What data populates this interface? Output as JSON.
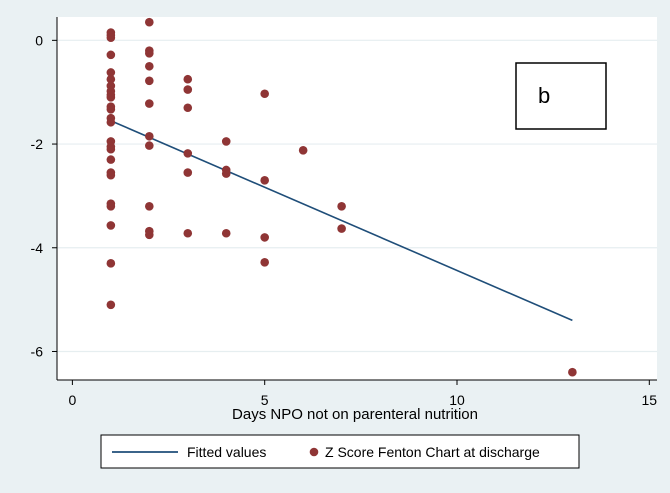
{
  "chart_data": {
    "type": "scatter",
    "xlabel": "Days NPO not on parenteral nutrition",
    "ylabel": "",
    "xlim": [
      -0.4,
      15.2
    ],
    "ylim": [
      -6.55,
      0.45
    ],
    "x_ticks": [
      0,
      5,
      10,
      15
    ],
    "y_ticks": [
      0,
      -2,
      -4,
      -6
    ],
    "x_tick_labels": [
      "0",
      "5",
      "10",
      "15"
    ],
    "y_tick_labels": [
      "0",
      "-2",
      "-4",
      "-6"
    ],
    "grid": "horizontal",
    "panel_label": "b",
    "legend_position": "bottom",
    "series": [
      {
        "name": "Z Score Fenton Chart at discharge",
        "kind": "scatter",
        "color": "#8f3535",
        "points": [
          {
            "x": 1,
            "y": 0.15
          },
          {
            "x": 1,
            "y": 0.1
          },
          {
            "x": 1,
            "y": 0.05
          },
          {
            "x": 1,
            "y": -0.28
          },
          {
            "x": 1,
            "y": -0.62
          },
          {
            "x": 1,
            "y": -0.75
          },
          {
            "x": 1,
            "y": -0.88
          },
          {
            "x": 1,
            "y": -0.98
          },
          {
            "x": 1,
            "y": -1.05
          },
          {
            "x": 1,
            "y": -1.1
          },
          {
            "x": 1,
            "y": -1.28
          },
          {
            "x": 1,
            "y": -1.33
          },
          {
            "x": 1,
            "y": -1.5
          },
          {
            "x": 1,
            "y": -1.58
          },
          {
            "x": 1,
            "y": -1.95
          },
          {
            "x": 1,
            "y": -2.05
          },
          {
            "x": 1,
            "y": -2.1
          },
          {
            "x": 1,
            "y": -2.3
          },
          {
            "x": 1,
            "y": -2.55
          },
          {
            "x": 1,
            "y": -2.6
          },
          {
            "x": 1,
            "y": -3.15
          },
          {
            "x": 1,
            "y": -3.2
          },
          {
            "x": 1,
            "y": -3.57
          },
          {
            "x": 1,
            "y": -4.3
          },
          {
            "x": 1,
            "y": -5.1
          },
          {
            "x": 2,
            "y": 0.35
          },
          {
            "x": 2,
            "y": -0.2
          },
          {
            "x": 2,
            "y": -0.25
          },
          {
            "x": 2,
            "y": -0.5
          },
          {
            "x": 2,
            "y": -0.78
          },
          {
            "x": 2,
            "y": -1.22
          },
          {
            "x": 2,
            "y": -1.85
          },
          {
            "x": 2,
            "y": -2.03
          },
          {
            "x": 2,
            "y": -3.2
          },
          {
            "x": 2,
            "y": -3.68
          },
          {
            "x": 2,
            "y": -3.75
          },
          {
            "x": 3,
            "y": -0.75
          },
          {
            "x": 3,
            "y": -0.95
          },
          {
            "x": 3,
            "y": -1.3
          },
          {
            "x": 3,
            "y": -2.18
          },
          {
            "x": 3,
            "y": -2.55
          },
          {
            "x": 3,
            "y": -3.72
          },
          {
            "x": 4,
            "y": -1.95
          },
          {
            "x": 4,
            "y": -2.5
          },
          {
            "x": 4,
            "y": -2.57
          },
          {
            "x": 4,
            "y": -3.72
          },
          {
            "x": 5,
            "y": -1.03
          },
          {
            "x": 5,
            "y": -2.7
          },
          {
            "x": 5,
            "y": -3.8
          },
          {
            "x": 5,
            "y": -4.28
          },
          {
            "x": 6,
            "y": -2.12
          },
          {
            "x": 7,
            "y": -3.2
          },
          {
            "x": 7,
            "y": -3.63
          },
          {
            "x": 13,
            "y": -6.4
          }
        ]
      },
      {
        "name": "Fitted values",
        "kind": "line",
        "color": "#1f4e79",
        "points": [
          {
            "x": 1,
            "y": -1.55
          },
          {
            "x": 13,
            "y": -5.4
          }
        ]
      }
    ]
  }
}
